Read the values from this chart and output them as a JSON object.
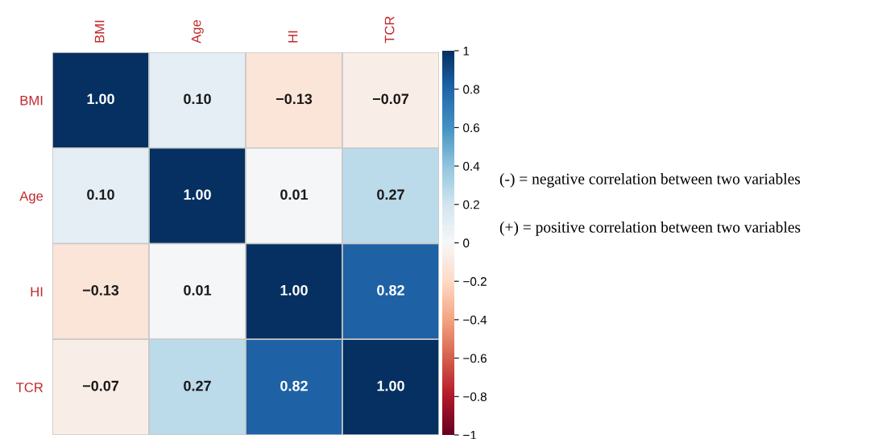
{
  "chart_data": {
    "type": "heatmap",
    "categories": [
      "BMI",
      "Age",
      "HI",
      "TCR"
    ],
    "y_categories": [
      "BMI",
      "Age",
      "HI",
      "TCR"
    ],
    "cells": [
      [
        1.0,
        0.1,
        -0.13,
        -0.07
      ],
      [
        0.1,
        1.0,
        0.01,
        0.27
      ],
      [
        -0.13,
        0.01,
        1.0,
        0.82
      ],
      [
        -0.07,
        0.27,
        0.82,
        1.0
      ]
    ],
    "cell_labels": [
      [
        "1.00",
        "0.10",
        "−0.13",
        "−0.07"
      ],
      [
        "0.10",
        "1.00",
        "0.01",
        "0.27"
      ],
      [
        "−0.13",
        "0.01",
        "1.00",
        "0.82"
      ],
      [
        "−0.07",
        "0.27",
        "0.82",
        "1.00"
      ]
    ],
    "clim": [
      -1,
      1
    ],
    "cticks": [
      {
        "value": -1,
        "label": "−1"
      },
      {
        "value": -0.8,
        "label": "−0.8"
      },
      {
        "value": -0.6,
        "label": "−0.6"
      },
      {
        "value": -0.4,
        "label": "−0.4"
      },
      {
        "value": -0.2,
        "label": "−0.2"
      },
      0,
      0.2,
      0.4,
      0.6,
      0.8,
      1
    ],
    "annotations": [
      "(-) = negative correlation between two variables",
      "(+) = positive correlation between two variables"
    ]
  }
}
